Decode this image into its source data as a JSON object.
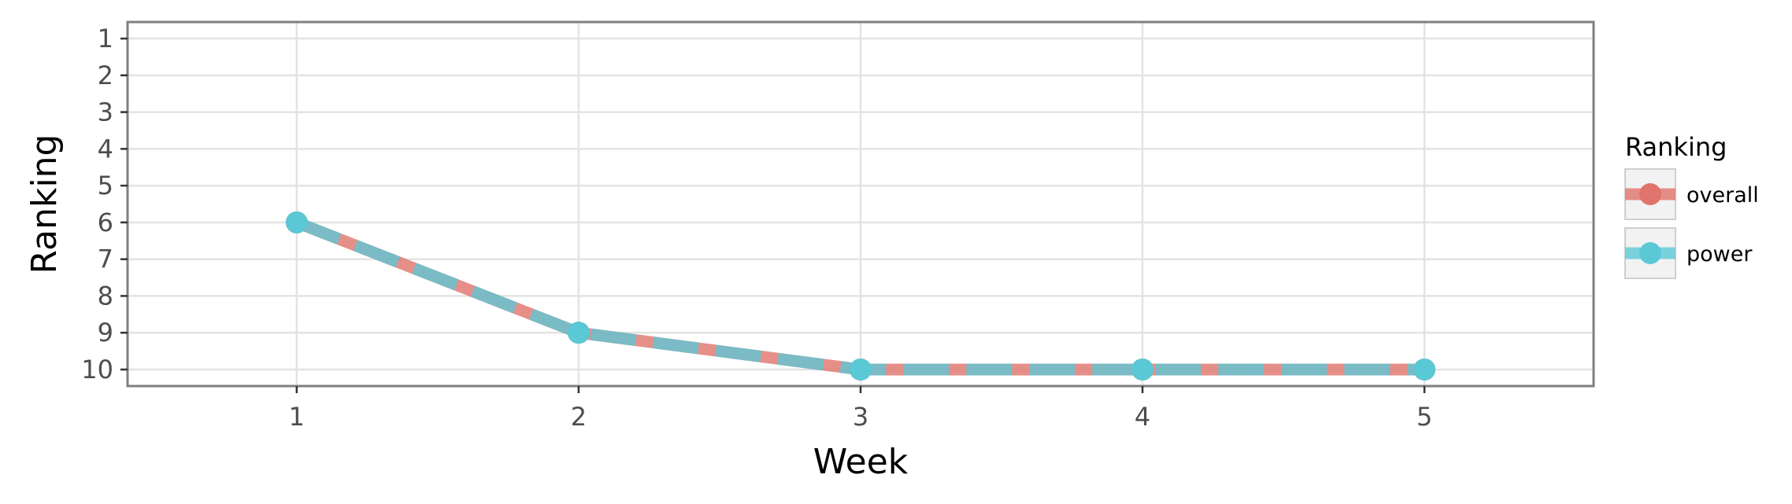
{
  "chart_data": {
    "type": "line",
    "title": "",
    "xlabel": "Week",
    "ylabel": "Ranking",
    "x": [
      1,
      2,
      3,
      4,
      5
    ],
    "xlim": [
      0.4,
      5.6
    ],
    "ylim": [
      10.45,
      0.55
    ],
    "y_reversed": true,
    "xticks": [
      "1",
      "2",
      "3",
      "4",
      "5"
    ],
    "yticks": [
      "1",
      "2",
      "3",
      "4",
      "5",
      "6",
      "7",
      "8",
      "9",
      "10"
    ],
    "grid": true,
    "legend": {
      "title": "Ranking",
      "position": "right"
    },
    "series": [
      {
        "name": "overall",
        "color": "#e0736b",
        "values": [
          6,
          9,
          10,
          10,
          10
        ]
      },
      {
        "name": "power",
        "color": "#5bc8d6",
        "values": [
          6,
          9,
          10,
          10,
          10
        ]
      }
    ]
  }
}
